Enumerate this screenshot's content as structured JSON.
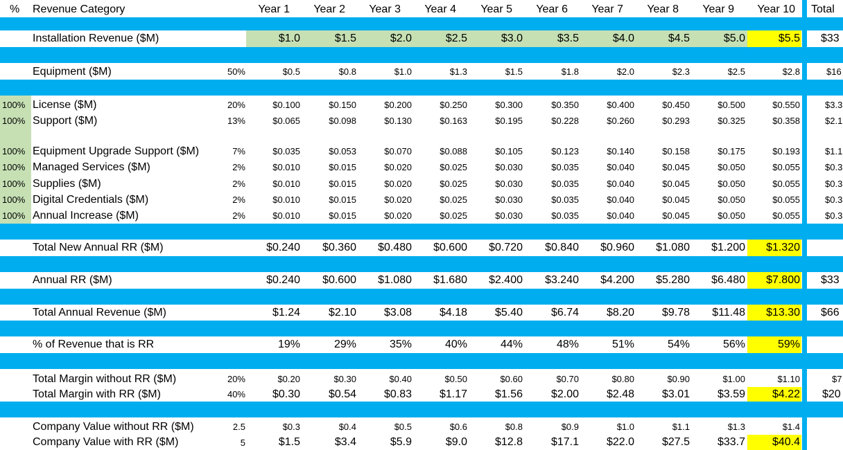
{
  "colors": {
    "band": "#00aeef",
    "green_fill": "#c6e0b4",
    "yellow_fill": "#ffff00"
  },
  "header": {
    "pct": "%",
    "category": "Revenue Category",
    "years": [
      "Year 1",
      "Year 2",
      "Year 3",
      "Year 4",
      "Year 5",
      "Year 6",
      "Year 7",
      "Year 8",
      "Year 9",
      "Year 10"
    ],
    "total": "Total"
  },
  "rows": [
    {
      "key": "installation",
      "label": "Installation Revenue ($M)",
      "pct": "",
      "factor": "",
      "values": [
        "$1.0",
        "$1.5",
        "$2.0",
        "$2.5",
        "$3.0",
        "$3.5",
        "$4.0",
        "$4.5",
        "$5.0",
        "$5.5"
      ],
      "total": "$33"
    },
    {
      "key": "equipment",
      "label": "Equipment ($M)",
      "pct": "",
      "factor": "50%",
      "values": [
        "$0.5",
        "$0.8",
        "$1.0",
        "$1.3",
        "$1.5",
        "$1.8",
        "$2.0",
        "$2.3",
        "$2.5",
        "$2.8"
      ],
      "total": "$16"
    },
    {
      "key": "license",
      "label": "License ($M)",
      "pct": "100%",
      "factor": "20%",
      "values": [
        "$0.100",
        "$0.150",
        "$0.200",
        "$0.250",
        "$0.300",
        "$0.350",
        "$0.400",
        "$0.450",
        "$0.500",
        "$0.550"
      ],
      "total": "$3.3"
    },
    {
      "key": "support",
      "label": "Support ($M)",
      "pct": "100%",
      "factor": "13%",
      "values": [
        "$0.065",
        "$0.098",
        "$0.130",
        "$0.163",
        "$0.195",
        "$0.228",
        "$0.260",
        "$0.293",
        "$0.325",
        "$0.358"
      ],
      "total": "$2.1"
    },
    {
      "key": "upgrade",
      "label": "Equipment Upgrade Support ($M)",
      "pct": "100%",
      "factor": "7%",
      "values": [
        "$0.035",
        "$0.053",
        "$0.070",
        "$0.088",
        "$0.105",
        "$0.123",
        "$0.140",
        "$0.158",
        "$0.175",
        "$0.193"
      ],
      "total": "$1.1"
    },
    {
      "key": "managed",
      "label": "Managed Services ($M)",
      "pct": "100%",
      "factor": "2%",
      "values": [
        "$0.010",
        "$0.015",
        "$0.020",
        "$0.025",
        "$0.030",
        "$0.035",
        "$0.040",
        "$0.045",
        "$0.050",
        "$0.055"
      ],
      "total": "$0.3"
    },
    {
      "key": "supplies",
      "label": "Supplies ($M)",
      "pct": "100%",
      "factor": "2%",
      "values": [
        "$0.010",
        "$0.015",
        "$0.020",
        "$0.025",
        "$0.030",
        "$0.035",
        "$0.040",
        "$0.045",
        "$0.050",
        "$0.055"
      ],
      "total": "$0.3"
    },
    {
      "key": "credentials",
      "label": "Digital Credentials ($M)",
      "pct": "100%",
      "factor": "2%",
      "values": [
        "$0.010",
        "$0.015",
        "$0.020",
        "$0.025",
        "$0.030",
        "$0.035",
        "$0.040",
        "$0.045",
        "$0.050",
        "$0.055"
      ],
      "total": "$0.3"
    },
    {
      "key": "increase",
      "label": "Annual Increase ($M)",
      "pct": "100%",
      "factor": "2%",
      "values": [
        "$0.010",
        "$0.015",
        "$0.020",
        "$0.025",
        "$0.030",
        "$0.035",
        "$0.040",
        "$0.045",
        "$0.050",
        "$0.055"
      ],
      "total": "$0.3"
    },
    {
      "key": "new_rr",
      "label": "Total New Annual RR ($M)",
      "pct": "",
      "factor": "",
      "values": [
        "$0.240",
        "$0.360",
        "$0.480",
        "$0.600",
        "$0.720",
        "$0.840",
        "$0.960",
        "$1.080",
        "$1.200",
        "$1.320"
      ],
      "total": ""
    },
    {
      "key": "annual_rr",
      "label": "Annual RR ($M)",
      "pct": "",
      "factor": "",
      "values": [
        "$0.240",
        "$0.600",
        "$1.080",
        "$1.680",
        "$2.400",
        "$3.240",
        "$4.200",
        "$5.280",
        "$6.480",
        "$7.800"
      ],
      "total": "$33"
    },
    {
      "key": "total_rev",
      "label": "Total Annual Revenue ($M)",
      "pct": "",
      "factor": "",
      "values": [
        "$1.24",
        "$2.10",
        "$3.08",
        "$4.18",
        "$5.40",
        "$6.74",
        "$8.20",
        "$9.78",
        "$11.48",
        "$13.30"
      ],
      "total": "$66"
    },
    {
      "key": "rr_share",
      "label": "% of Revenue that is RR",
      "pct": "",
      "factor": "",
      "values": [
        "19%",
        "29%",
        "35%",
        "40%",
        "44%",
        "48%",
        "51%",
        "54%",
        "56%",
        "59%"
      ],
      "total": ""
    },
    {
      "key": "margin_wo",
      "label": "Total Margin without RR ($M)",
      "pct": "",
      "factor": "20%",
      "values": [
        "$0.20",
        "$0.30",
        "$0.40",
        "$0.50",
        "$0.60",
        "$0.70",
        "$0.80",
        "$0.90",
        "$1.00",
        "$1.10"
      ],
      "total": "$7"
    },
    {
      "key": "margin_w",
      "label": "Total Margin with RR ($M)",
      "pct": "",
      "factor": "40%",
      "values": [
        "$0.30",
        "$0.54",
        "$0.83",
        "$1.17",
        "$1.56",
        "$2.00",
        "$2.48",
        "$3.01",
        "$3.59",
        "$4.22"
      ],
      "total": "$20"
    },
    {
      "key": "value_wo",
      "label": "Company Value without RR ($M)",
      "pct": "",
      "factor": "2.5",
      "values": [
        "$0.3",
        "$0.4",
        "$0.5",
        "$0.6",
        "$0.8",
        "$0.9",
        "$1.0",
        "$1.1",
        "$1.3",
        "$1.4"
      ],
      "total": ""
    },
    {
      "key": "value_w",
      "label": "Company Value with RR ($M)",
      "pct": "",
      "factor": "5",
      "values": [
        "$1.5",
        "$3.4",
        "$5.9",
        "$9.0",
        "$12.8",
        "$17.1",
        "$22.0",
        "$27.5",
        "$33.7",
        "$40.4"
      ],
      "total": ""
    }
  ]
}
